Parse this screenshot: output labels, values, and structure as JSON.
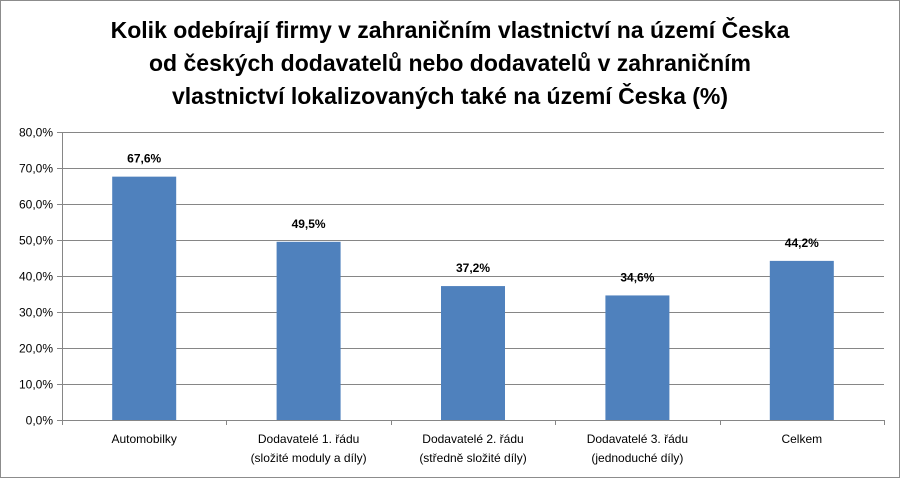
{
  "chart_data": {
    "type": "bar",
    "title": "Kolik odebírají firmy v zahraničním vlastnictví na území Česka od českých dodavatelů nebo dodavatelů v zahraničním vlastnictví lokalizovaných také na území Česka (%)",
    "title_lines": [
      "Kolik odebírají firmy v zahraničním vlastnictví na území Česka",
      "od českých dodavatelů nebo dodavatelů v zahraničním",
      "vlastnictví lokalizovaných také na území Česka (%)"
    ],
    "categories": [
      [
        "Automobilky"
      ],
      [
        "Dodavatelé 1. řádu",
        "(složité moduly a díly)"
      ],
      [
        "Dodavatelé 2. řádu",
        "(středně složité díly)"
      ],
      [
        "Dodavatelé 3. řádu",
        "(jednoduché díly)"
      ],
      [
        "Celkem"
      ]
    ],
    "values": [
      67.6,
      49.5,
      37.2,
      34.6,
      44.2
    ],
    "value_labels": [
      "67,6%",
      "49,5%",
      "37,2%",
      "34,6%",
      "44,2%"
    ],
    "ylim": [
      0,
      80
    ],
    "yticks": [
      0,
      10,
      20,
      30,
      40,
      50,
      60,
      70,
      80
    ],
    "ytick_labels": [
      "0,0%",
      "10,0%",
      "20,0%",
      "30,0%",
      "40,0%",
      "50,0%",
      "60,0%",
      "70,0%",
      "80,0%"
    ],
    "xlabel": "",
    "ylabel": "",
    "grid": true,
    "legend": "none",
    "bar_color": "#4f81bd",
    "grid_color": "#868686"
  }
}
